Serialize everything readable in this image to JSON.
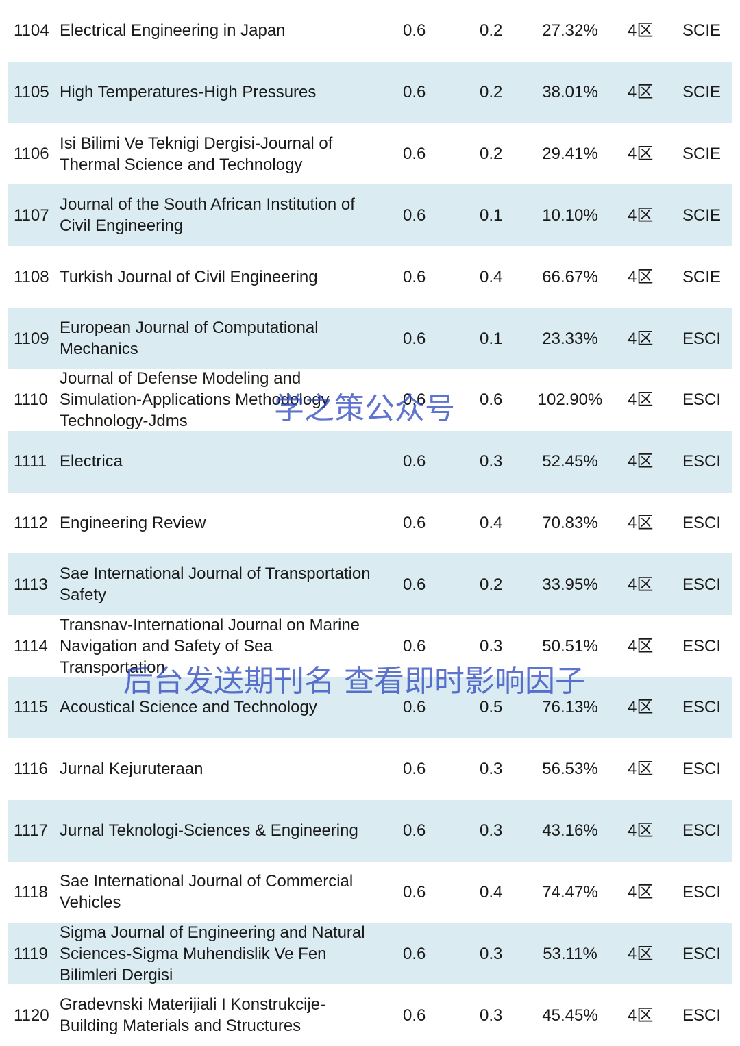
{
  "table": {
    "rows": [
      [
        "1104",
        "Electrical Engineering in Japan",
        "0.6",
        "0.2",
        "27.32%",
        "4区",
        "SCIE"
      ],
      [
        "1105",
        "High Temperatures-High Pressures",
        "0.6",
        "0.2",
        "38.01%",
        "4区",
        "SCIE"
      ],
      [
        "1106",
        "Isi Bilimi Ve Teknigi Dergisi-Journal of Thermal Science and Technology",
        "0.6",
        "0.2",
        "29.41%",
        "4区",
        "SCIE"
      ],
      [
        "1107",
        "Journal of the South African Institution of Civil Engineering",
        "0.6",
        "0.1",
        "10.10%",
        "4区",
        "SCIE"
      ],
      [
        "1108",
        "Turkish Journal of Civil Engineering",
        "0.6",
        "0.4",
        "66.67%",
        "4区",
        "SCIE"
      ],
      [
        "1109",
        "European Journal of Computational Mechanics",
        "0.6",
        "0.1",
        "23.33%",
        "4区",
        "ESCI"
      ],
      [
        "1110",
        "Journal of Defense Modeling and Simulation-Applications Methodology Technology-Jdms",
        "0.6",
        "0.6",
        "102.90%",
        "4区",
        "ESCI"
      ],
      [
        "1111",
        "Electrica",
        "0.6",
        "0.3",
        "52.45%",
        "4区",
        "ESCI"
      ],
      [
        "1112",
        "Engineering Review",
        "0.6",
        "0.4",
        "70.83%",
        "4区",
        "ESCI"
      ],
      [
        "1113",
        "Sae International Journal of Transportation Safety",
        "0.6",
        "0.2",
        "33.95%",
        "4区",
        "ESCI"
      ],
      [
        "1114",
        "Transnav-International Journal on Marine Navigation and Safety of Sea Transportation",
        "0.6",
        "0.3",
        "50.51%",
        "4区",
        "ESCI"
      ],
      [
        "1115",
        "Acoustical Science and Technology",
        "0.6",
        "0.5",
        "76.13%",
        "4区",
        "ESCI"
      ],
      [
        "1116",
        "Jurnal Kejuruteraan",
        "0.6",
        "0.3",
        "56.53%",
        "4区",
        "ESCI"
      ],
      [
        "1117",
        "Jurnal Teknologi-Sciences & Engineering",
        "0.6",
        "0.3",
        "43.16%",
        "4区",
        "ESCI"
      ],
      [
        "1118",
        "Sae International Journal of Commercial Vehicles",
        "0.6",
        "0.4",
        "74.47%",
        "4区",
        "ESCI"
      ],
      [
        "1119",
        "Sigma Journal of Engineering and Natural Sciences-Sigma Muhendislik Ve Fen Bilimleri Dergisi",
        "0.6",
        "0.3",
        "53.11%",
        "4区",
        "ESCI"
      ],
      [
        "1120",
        "Gradevnski Materijiali I Konstrukcije-Building Materials and Structures",
        "0.6",
        "0.3",
        "45.45%",
        "4区",
        "ESCI"
      ]
    ]
  },
  "watermarks": [
    "学之策公众号",
    "后台发送期刊名 查看即时影响因子"
  ]
}
